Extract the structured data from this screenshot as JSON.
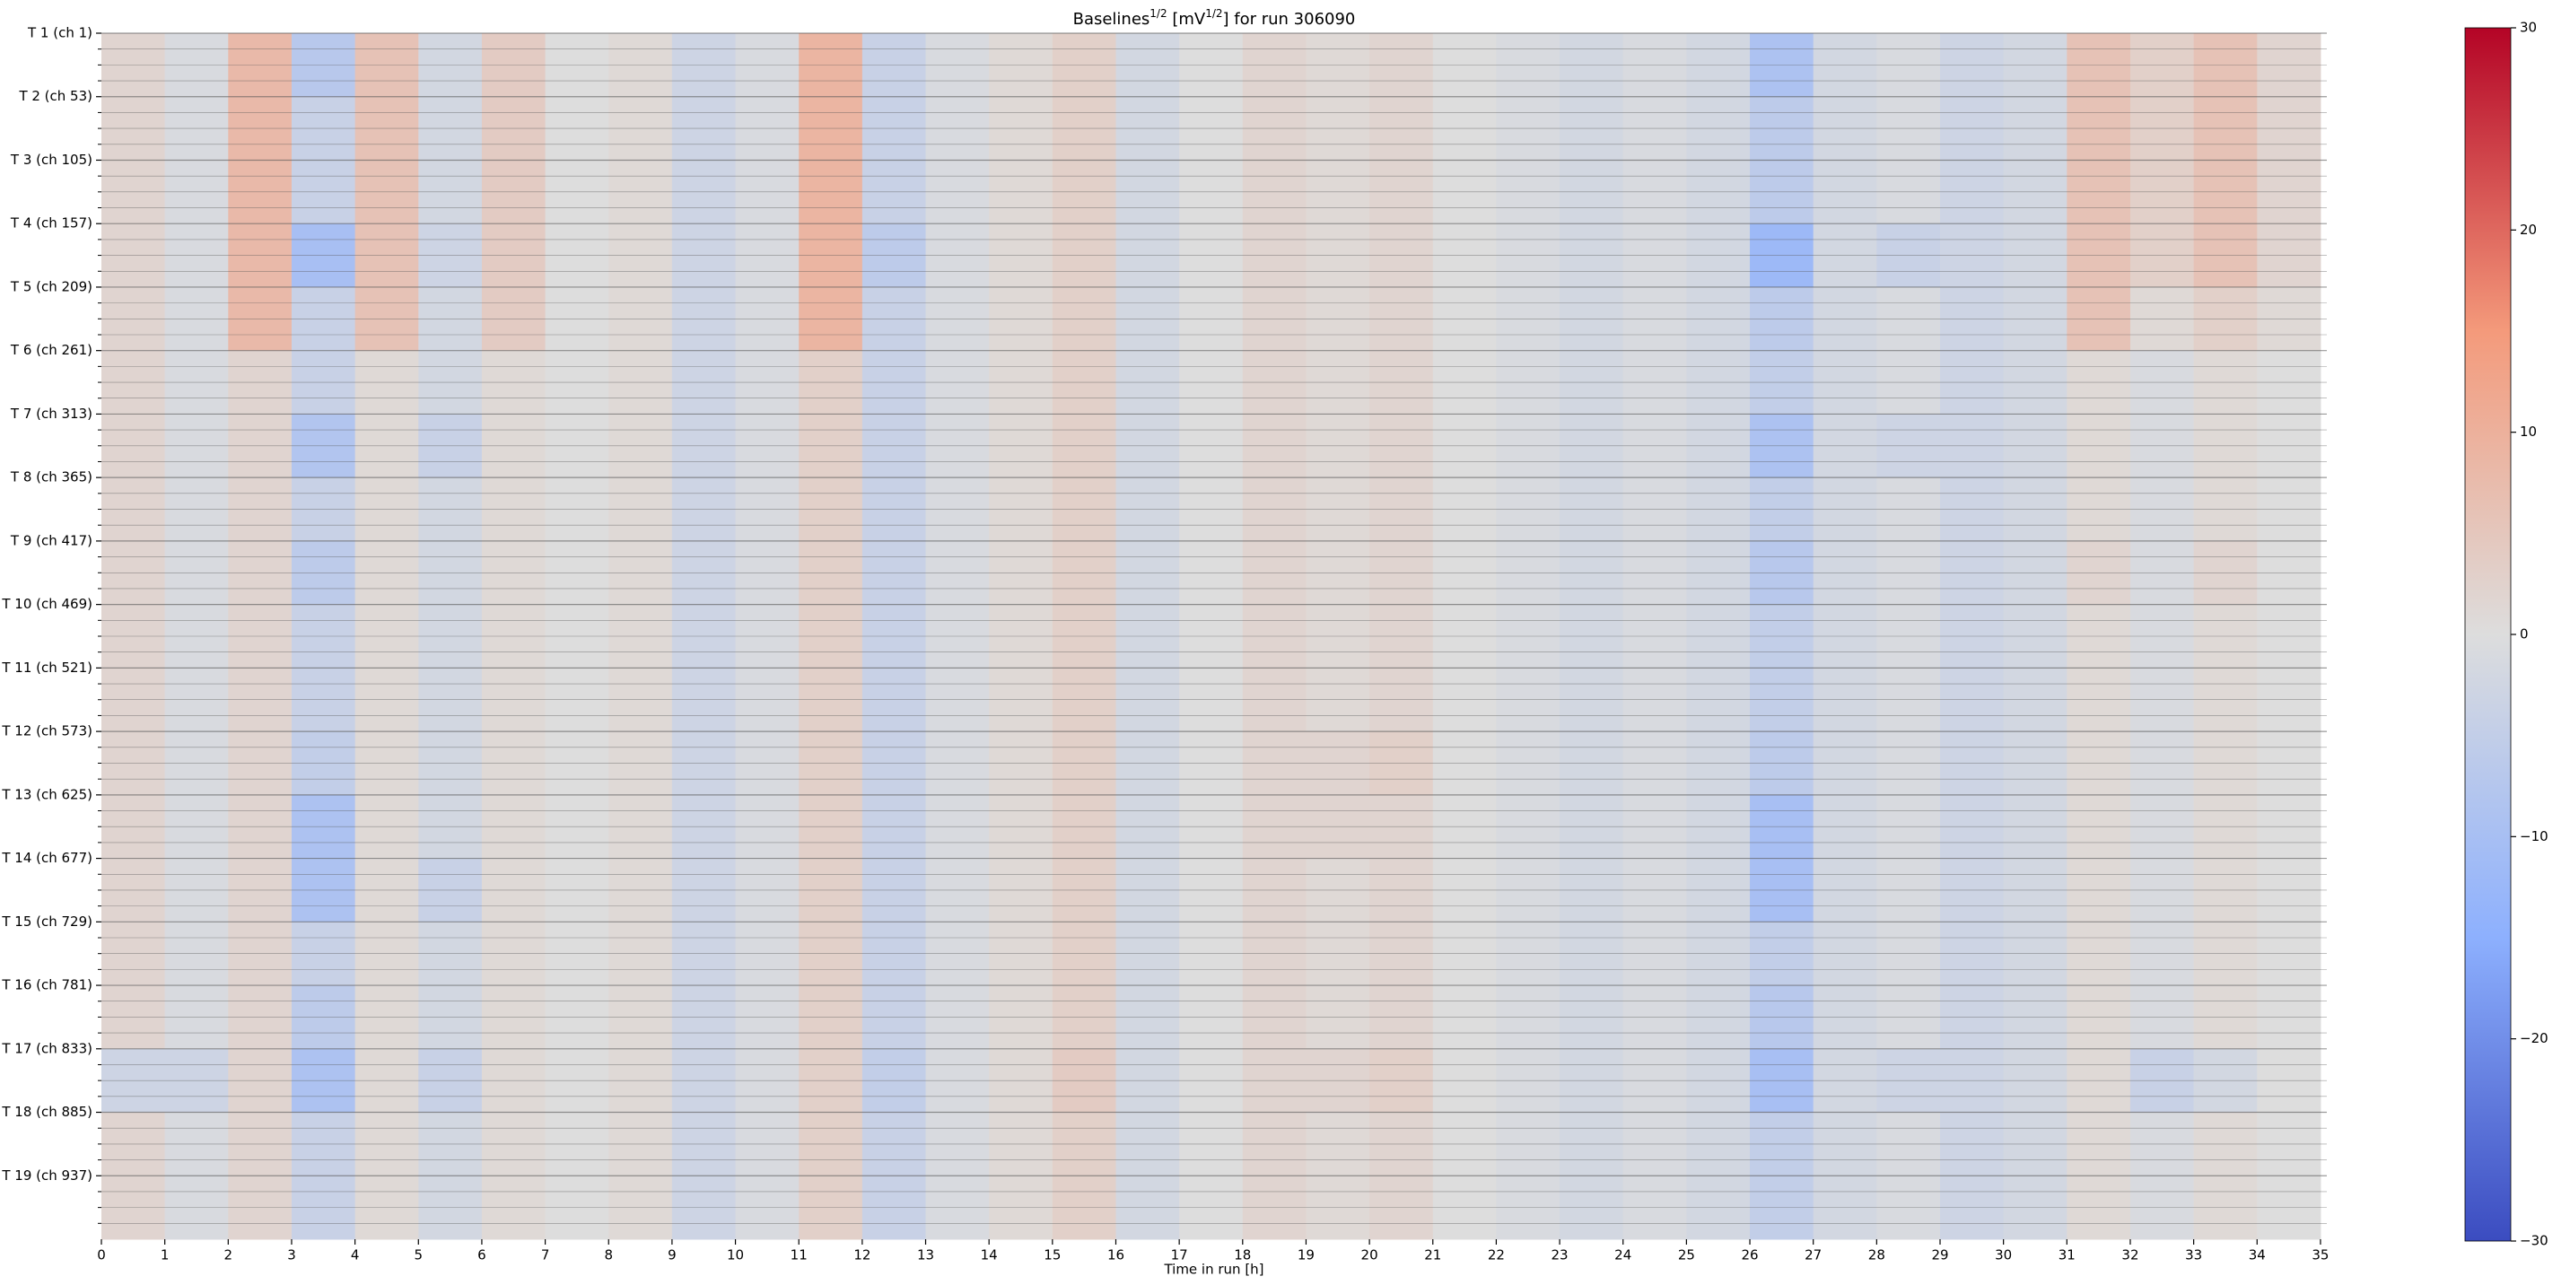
{
  "chart_data": {
    "type": "heatmap",
    "title": {
      "parts": [
        {
          "text": "Baselines"
        },
        {
          "text": "1/2",
          "sup": true
        },
        {
          "text": " [mV"
        },
        {
          "text": "1/2",
          "sup": true
        },
        {
          "text": "] for run 306090"
        }
      ]
    },
    "x_label": "Time in run [h]",
    "rows": [
      "T 1 (ch 1)",
      "T 2 (ch 53)",
      "T 3 (ch 105)",
      "T 4 (ch 157)",
      "T 5 (ch 209)",
      "T 6 (ch 261)",
      "T 7 (ch 313)",
      "T 8 (ch 365)",
      "T 9 (ch 417)",
      "T 10 (ch 469)",
      "T 11 (ch 521)",
      "T 12 (ch 573)",
      "T 13 (ch 625)",
      "T 14 (ch 677)",
      "T 15 (ch 729)",
      "T 16 (ch 781)",
      "T 17 (ch 833)",
      "T 18 (ch 885)",
      "T 19 (ch 937)"
    ],
    "bins": [
      0,
      1,
      2,
      3,
      4,
      5,
      6,
      7,
      8,
      9,
      10,
      11,
      12,
      13,
      14,
      15,
      16,
      17,
      18,
      19,
      20,
      21,
      22,
      23,
      24,
      25,
      26,
      27,
      28,
      29,
      30,
      31,
      32,
      33,
      34,
      35
    ],
    "xlim": [
      0,
      35.1
    ],
    "xticks": [
      0,
      1,
      2,
      3,
      4,
      5,
      6,
      7,
      8,
      9,
      10,
      11,
      12,
      13,
      14,
      15,
      16,
      17,
      18,
      19,
      20,
      21,
      22,
      23,
      24,
      25,
      26,
      27,
      28,
      29,
      30,
      31,
      32,
      33,
      34,
      35
    ],
    "colormap": [
      "#3b4cc0",
      "#8db0fe",
      "#dddddd",
      "#f49a7b",
      "#b40426"
    ],
    "clim": [
      -30,
      30
    ],
    "cticks": [
      {
        "value": -30,
        "label": "−30"
      },
      {
        "value": -20,
        "label": "−20"
      },
      {
        "value": -10,
        "label": "−10"
      },
      0,
      10,
      20,
      30
    ],
    "z": [
      [
        2,
        -1,
        8,
        -7,
        6,
        -2,
        4,
        0,
        1,
        -3,
        -1,
        9,
        -4,
        -1,
        1,
        3,
        -2,
        0,
        2,
        1,
        2,
        0,
        -1,
        -2,
        -1,
        -2,
        -9,
        -2,
        -1,
        -3,
        -2,
        6,
        3,
        6,
        2
      ],
      [
        2,
        -1,
        8,
        -4,
        6,
        -2,
        4,
        0,
        1,
        -3,
        -1,
        9,
        -4,
        -1,
        1,
        3,
        -2,
        0,
        2,
        1,
        2,
        0,
        -1,
        -2,
        -1,
        -2,
        -6,
        -2,
        -1,
        -3,
        -2,
        6,
        3,
        6,
        2
      ],
      [
        2,
        -1,
        8,
        -4,
        6,
        -2,
        4,
        0,
        1,
        -3,
        -1,
        9,
        -4,
        -1,
        1,
        3,
        -2,
        0,
        2,
        1,
        2,
        0,
        -1,
        -2,
        -1,
        -2,
        -6,
        -2,
        -1,
        -3,
        -2,
        6,
        3,
        6,
        2
      ],
      [
        2,
        -1,
        8,
        -10,
        6,
        -3,
        4,
        0,
        1,
        -3,
        -1,
        9,
        -6,
        -1,
        1,
        3,
        -2,
        0,
        2,
        1,
        2,
        0,
        -1,
        -2,
        -1,
        -2,
        -12,
        -2,
        -4,
        -3,
        -2,
        6,
        3,
        6,
        2
      ],
      [
        2,
        -1,
        8,
        -4,
        6,
        -2,
        4,
        0,
        1,
        -3,
        -1,
        9,
        -4,
        -1,
        1,
        3,
        -2,
        0,
        2,
        1,
        2,
        0,
        -1,
        -2,
        -1,
        -2,
        -6,
        -2,
        -1,
        -3,
        -2,
        6,
        1,
        3,
        1
      ],
      [
        2,
        -1,
        2,
        -4,
        1,
        -2,
        1,
        0,
        1,
        -3,
        -1,
        3,
        -4,
        -1,
        1,
        3,
        -2,
        0,
        2,
        1,
        2,
        0,
        -1,
        -2,
        -1,
        -2,
        -5,
        -2,
        -1,
        -3,
        -2,
        1,
        -1,
        1,
        0
      ],
      [
        2,
        -1,
        2,
        -8,
        1,
        -4,
        1,
        0,
        1,
        -3,
        -1,
        3,
        -4,
        -1,
        1,
        3,
        -2,
        0,
        2,
        1,
        2,
        0,
        -1,
        -2,
        -1,
        -2,
        -9,
        -2,
        -3,
        -3,
        -2,
        1,
        -1,
        1,
        0
      ],
      [
        2,
        -1,
        2,
        -4,
        1,
        -2,
        1,
        0,
        1,
        -3,
        -1,
        3,
        -4,
        -1,
        1,
        3,
        -2,
        0,
        2,
        1,
        2,
        0,
        -1,
        -2,
        -1,
        -2,
        -5,
        -2,
        -1,
        -3,
        -2,
        1,
        -1,
        1,
        0
      ],
      [
        2,
        -1,
        2,
        -6,
        1,
        -2,
        1,
        0,
        1,
        -3,
        -1,
        3,
        -4,
        -1,
        1,
        3,
        -2,
        0,
        2,
        1,
        2,
        0,
        -1,
        -2,
        -1,
        -2,
        -7,
        -2,
        -1,
        -3,
        -2,
        2,
        -1,
        2,
        0
      ],
      [
        2,
        -1,
        2,
        -4,
        1,
        -2,
        1,
        0,
        1,
        -3,
        -1,
        3,
        -4,
        -1,
        1,
        3,
        -2,
        0,
        2,
        1,
        2,
        0,
        -1,
        -2,
        -1,
        -2,
        -5,
        -2,
        -1,
        -3,
        -2,
        1,
        -1,
        1,
        0
      ],
      [
        2,
        -1,
        2,
        -4,
        1,
        -2,
        1,
        0,
        1,
        -3,
        -1,
        3,
        -4,
        -1,
        1,
        3,
        -2,
        0,
        2,
        1,
        2,
        0,
        -1,
        -2,
        -1,
        -2,
        -5,
        -2,
        -1,
        -3,
        -2,
        1,
        -1,
        1,
        0
      ],
      [
        2,
        -1,
        2,
        -5,
        1,
        -2,
        1,
        0,
        1,
        -3,
        -1,
        3,
        -4,
        -1,
        1,
        3,
        -2,
        0,
        2,
        2,
        3,
        0,
        -1,
        -2,
        -1,
        -2,
        -6,
        -2,
        -1,
        -3,
        -2,
        1,
        -1,
        1,
        0
      ],
      [
        2,
        -1,
        2,
        -9,
        1,
        -2,
        1,
        0,
        1,
        -3,
        -1,
        3,
        -4,
        -1,
        1,
        3,
        -2,
        0,
        2,
        2,
        2,
        0,
        -1,
        -2,
        -1,
        -2,
        -10,
        -2,
        -1,
        -3,
        -2,
        1,
        -1,
        1,
        0
      ],
      [
        2,
        -1,
        2,
        -9,
        1,
        -4,
        1,
        0,
        1,
        -3,
        -1,
        3,
        -4,
        -1,
        1,
        3,
        -2,
        0,
        2,
        1,
        2,
        0,
        -1,
        -2,
        -1,
        -2,
        -10,
        -2,
        -1,
        -3,
        -2,
        1,
        -1,
        1,
        0
      ],
      [
        2,
        -1,
        2,
        -4,
        1,
        -2,
        1,
        0,
        1,
        -3,
        -1,
        3,
        -4,
        -1,
        1,
        3,
        -2,
        0,
        2,
        1,
        2,
        0,
        -1,
        -2,
        -1,
        -2,
        -5,
        -2,
        -1,
        -3,
        -2,
        1,
        -1,
        1,
        0
      ],
      [
        2,
        -1,
        2,
        -6,
        1,
        -2,
        1,
        0,
        1,
        -3,
        -1,
        3,
        -4,
        -1,
        1,
        3,
        -2,
        0,
        2,
        1,
        2,
        0,
        -1,
        -2,
        -1,
        -2,
        -7,
        -2,
        -1,
        -3,
        -2,
        1,
        -1,
        1,
        0
      ],
      [
        -3,
        -3,
        2,
        -9,
        1,
        -4,
        1,
        0,
        1,
        -3,
        -1,
        3,
        -5,
        -1,
        1,
        4,
        -2,
        0,
        2,
        2,
        3,
        0,
        -1,
        -2,
        -1,
        -2,
        -10,
        -2,
        -3,
        -3,
        -2,
        1,
        -4,
        -2,
        0
      ],
      [
        2,
        -1,
        2,
        -4,
        1,
        -2,
        1,
        0,
        1,
        -3,
        -1,
        3,
        -4,
        -1,
        1,
        3,
        -2,
        0,
        2,
        1,
        2,
        0,
        -1,
        -2,
        -1,
        -2,
        -5,
        -2,
        -1,
        -3,
        -2,
        1,
        -1,
        1,
        0
      ],
      [
        2,
        -1,
        2,
        -4,
        1,
        -2,
        1,
        0,
        1,
        -3,
        -1,
        3,
        -4,
        -1,
        1,
        3,
        -2,
        0,
        2,
        1,
        2,
        0,
        -1,
        -2,
        -1,
        -2,
        -5,
        -2,
        -1,
        -3,
        -2,
        1,
        -1,
        1,
        0
      ]
    ]
  }
}
